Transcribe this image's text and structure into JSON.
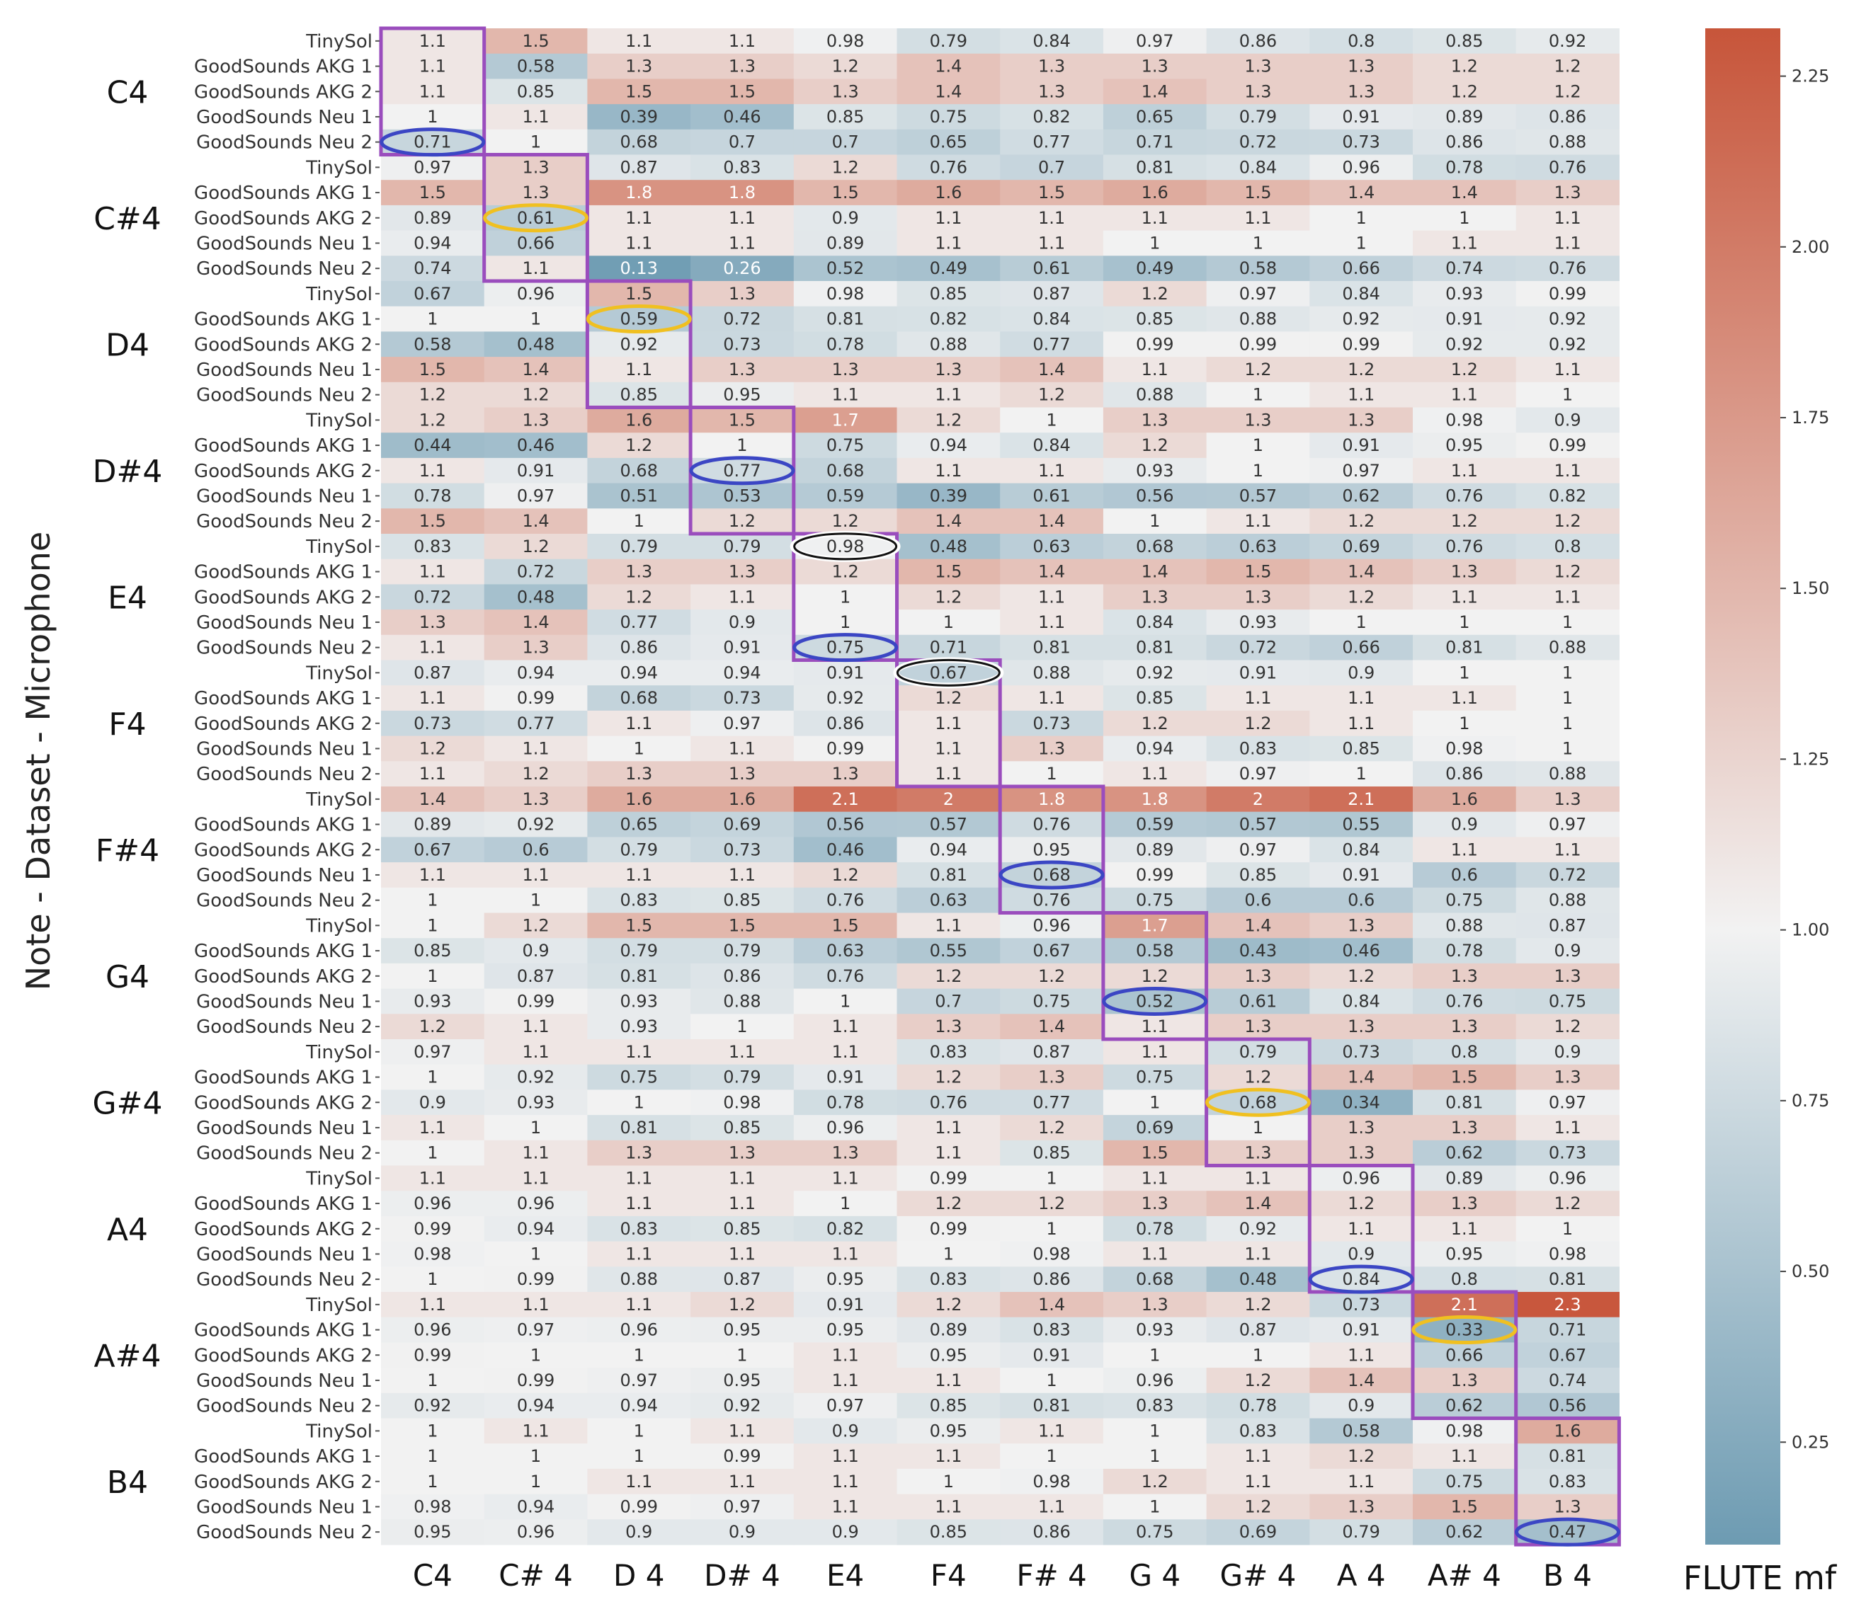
{
  "chart_data": {
    "type": "heatmap",
    "title": "FLUTE mf",
    "ylabel": "Note - Dataset - Microphone",
    "xlabel": "",
    "columns": [
      "C4",
      "C# 4",
      "D 4",
      "D# 4",
      "E4",
      "F4",
      "F# 4",
      "G 4",
      "G# 4",
      "A 4",
      "A# 4",
      "B 4"
    ],
    "notes": [
      "C4",
      "C#4",
      "D4",
      "D#4",
      "E4",
      "F4",
      "F#4",
      "G4",
      "G#4",
      "A4",
      "A#4",
      "B4"
    ],
    "microphones": [
      "TinySol",
      "GoodSounds  AKG 1",
      "GoodSounds  AKG 2",
      "GoodSounds   Neu 1",
      "GoodSounds   Neu 2"
    ],
    "values": [
      [
        "1.1",
        "1.5",
        "1.1",
        "1.1",
        "0.98",
        "0.79",
        "0.84",
        "0.97",
        "0.86",
        "0.8",
        "0.85",
        "0.92"
      ],
      [
        "1.1",
        "0.58",
        "1.3",
        "1.3",
        "1.2",
        "1.4",
        "1.3",
        "1.3",
        "1.3",
        "1.3",
        "1.2",
        "1.2"
      ],
      [
        "1.1",
        "0.85",
        "1.5",
        "1.5",
        "1.3",
        "1.4",
        "1.3",
        "1.4",
        "1.3",
        "1.3",
        "1.2",
        "1.2"
      ],
      [
        "1",
        "1.1",
        "0.39",
        "0.46",
        "0.85",
        "0.75",
        "0.82",
        "0.65",
        "0.79",
        "0.91",
        "0.89",
        "0.86"
      ],
      [
        "0.71",
        "1",
        "0.68",
        "0.7",
        "0.7",
        "0.65",
        "0.77",
        "0.71",
        "0.72",
        "0.73",
        "0.86",
        "0.88"
      ],
      [
        "0.97",
        "1.3",
        "0.87",
        "0.83",
        "1.2",
        "0.76",
        "0.7",
        "0.81",
        "0.84",
        "0.96",
        "0.78",
        "0.76"
      ],
      [
        "1.5",
        "1.3",
        "1.8",
        "1.8",
        "1.5",
        "1.6",
        "1.5",
        "1.6",
        "1.5",
        "1.4",
        "1.4",
        "1.3"
      ],
      [
        "0.89",
        "0.61",
        "1.1",
        "1.1",
        "0.9",
        "1.1",
        "1.1",
        "1.1",
        "1.1",
        "1",
        "1",
        "1.1"
      ],
      [
        "0.94",
        "0.66",
        "1.1",
        "1.1",
        "0.89",
        "1.1",
        "1.1",
        "1",
        "1",
        "1",
        "1.1",
        "1.1"
      ],
      [
        "0.74",
        "1.1",
        "0.13",
        "0.26",
        "0.52",
        "0.49",
        "0.61",
        "0.49",
        "0.58",
        "0.66",
        "0.74",
        "0.76"
      ],
      [
        "0.67",
        "0.96",
        "1.5",
        "1.3",
        "0.98",
        "0.85",
        "0.87",
        "1.2",
        "0.97",
        "0.84",
        "0.93",
        "0.99"
      ],
      [
        "1",
        "1",
        "0.59",
        "0.72",
        "0.81",
        "0.82",
        "0.84",
        "0.85",
        "0.88",
        "0.92",
        "0.91",
        "0.92"
      ],
      [
        "0.58",
        "0.48",
        "0.92",
        "0.73",
        "0.78",
        "0.88",
        "0.77",
        "0.99",
        "0.99",
        "0.99",
        "0.92",
        "0.92"
      ],
      [
        "1.5",
        "1.4",
        "1.1",
        "1.3",
        "1.3",
        "1.3",
        "1.4",
        "1.1",
        "1.2",
        "1.2",
        "1.2",
        "1.1"
      ],
      [
        "1.2",
        "1.2",
        "0.85",
        "0.95",
        "1.1",
        "1.1",
        "1.2",
        "0.88",
        "1",
        "1.1",
        "1.1",
        "1"
      ],
      [
        "1.2",
        "1.3",
        "1.6",
        "1.5",
        "1.7",
        "1.2",
        "1",
        "1.3",
        "1.3",
        "1.3",
        "0.98",
        "0.9"
      ],
      [
        "0.44",
        "0.46",
        "1.2",
        "1",
        "0.75",
        "0.94",
        "0.84",
        "1.2",
        "1",
        "0.91",
        "0.95",
        "0.99"
      ],
      [
        "1.1",
        "0.91",
        "0.68",
        "0.77",
        "0.68",
        "1.1",
        "1.1",
        "0.93",
        "1",
        "0.97",
        "1.1",
        "1.1"
      ],
      [
        "0.78",
        "0.97",
        "0.51",
        "0.53",
        "0.59",
        "0.39",
        "0.61",
        "0.56",
        "0.57",
        "0.62",
        "0.76",
        "0.82"
      ],
      [
        "1.5",
        "1.4",
        "1",
        "1.2",
        "1.2",
        "1.4",
        "1.4",
        "1",
        "1.1",
        "1.2",
        "1.2",
        "1.2"
      ],
      [
        "0.83",
        "1.2",
        "0.79",
        "0.79",
        "0.98",
        "0.48",
        "0.63",
        "0.68",
        "0.63",
        "0.69",
        "0.76",
        "0.8"
      ],
      [
        "1.1",
        "0.72",
        "1.3",
        "1.3",
        "1.2",
        "1.5",
        "1.4",
        "1.4",
        "1.5",
        "1.4",
        "1.3",
        "1.2"
      ],
      [
        "0.72",
        "0.48",
        "1.2",
        "1.1",
        "1",
        "1.2",
        "1.1",
        "1.3",
        "1.3",
        "1.2",
        "1.1",
        "1.1"
      ],
      [
        "1.3",
        "1.4",
        "0.77",
        "0.9",
        "1",
        "1",
        "1.1",
        "0.84",
        "0.93",
        "1",
        "1",
        "1"
      ],
      [
        "1.1",
        "1.3",
        "0.86",
        "0.91",
        "0.75",
        "0.71",
        "0.81",
        "0.81",
        "0.72",
        "0.66",
        "0.81",
        "0.88"
      ],
      [
        "0.87",
        "0.94",
        "0.94",
        "0.94",
        "0.91",
        "0.67",
        "0.88",
        "0.92",
        "0.91",
        "0.9",
        "1",
        "1"
      ],
      [
        "1.1",
        "0.99",
        "0.68",
        "0.73",
        "0.92",
        "1.2",
        "1.1",
        "0.85",
        "1.1",
        "1.1",
        "1.1",
        "1"
      ],
      [
        "0.73",
        "0.77",
        "1.1",
        "0.97",
        "0.86",
        "1.1",
        "0.73",
        "1.2",
        "1.2",
        "1.1",
        "1",
        "1"
      ],
      [
        "1.2",
        "1.1",
        "1",
        "1.1",
        "0.99",
        "1.1",
        "1.3",
        "0.94",
        "0.83",
        "0.85",
        "0.98",
        "1"
      ],
      [
        "1.1",
        "1.2",
        "1.3",
        "1.3",
        "1.3",
        "1.1",
        "1",
        "1.1",
        "0.97",
        "1",
        "0.86",
        "0.88"
      ],
      [
        "1.4",
        "1.3",
        "1.6",
        "1.6",
        "2.1",
        "2",
        "1.8",
        "1.8",
        "2",
        "2.1",
        "1.6",
        "1.3"
      ],
      [
        "0.89",
        "0.92",
        "0.65",
        "0.69",
        "0.56",
        "0.57",
        "0.76",
        "0.59",
        "0.57",
        "0.55",
        "0.9",
        "0.97"
      ],
      [
        "0.67",
        "0.6",
        "0.79",
        "0.73",
        "0.46",
        "0.94",
        "0.95",
        "0.89",
        "0.97",
        "0.84",
        "1.1",
        "1.1"
      ],
      [
        "1.1",
        "1.1",
        "1.1",
        "1.1",
        "1.2",
        "0.81",
        "0.68",
        "0.99",
        "0.85",
        "0.91",
        "0.6",
        "0.72"
      ],
      [
        "1",
        "1",
        "0.83",
        "0.85",
        "0.76",
        "0.63",
        "0.76",
        "0.75",
        "0.6",
        "0.6",
        "0.75",
        "0.88"
      ],
      [
        "1",
        "1.2",
        "1.5",
        "1.5",
        "1.5",
        "1.1",
        "0.96",
        "1.7",
        "1.4",
        "1.3",
        "0.88",
        "0.87"
      ],
      [
        "0.85",
        "0.9",
        "0.79",
        "0.79",
        "0.63",
        "0.55",
        "0.67",
        "0.58",
        "0.43",
        "0.46",
        "0.78",
        "0.9"
      ],
      [
        "1",
        "0.87",
        "0.81",
        "0.86",
        "0.76",
        "1.2",
        "1.2",
        "1.2",
        "1.3",
        "1.2",
        "1.3",
        "1.3"
      ],
      [
        "0.93",
        "0.99",
        "0.93",
        "0.88",
        "1",
        "0.7",
        "0.75",
        "0.52",
        "0.61",
        "0.84",
        "0.76",
        "0.75"
      ],
      [
        "1.2",
        "1.1",
        "0.93",
        "1",
        "1.1",
        "1.3",
        "1.4",
        "1.1",
        "1.3",
        "1.3",
        "1.3",
        "1.2"
      ],
      [
        "0.97",
        "1.1",
        "1.1",
        "1.1",
        "1.1",
        "0.83",
        "0.87",
        "1.1",
        "0.79",
        "0.73",
        "0.8",
        "0.9"
      ],
      [
        "1",
        "0.92",
        "0.75",
        "0.79",
        "0.91",
        "1.2",
        "1.3",
        "0.75",
        "1.2",
        "1.4",
        "1.5",
        "1.3"
      ],
      [
        "0.9",
        "0.93",
        "1",
        "0.98",
        "0.78",
        "0.76",
        "0.77",
        "1",
        "0.68",
        "0.34",
        "0.81",
        "0.97"
      ],
      [
        "1.1",
        "1",
        "0.81",
        "0.85",
        "0.96",
        "1.1",
        "1.2",
        "0.69",
        "1",
        "1.3",
        "1.3",
        "1.1"
      ],
      [
        "1",
        "1.1",
        "1.3",
        "1.3",
        "1.3",
        "1.1",
        "0.85",
        "1.5",
        "1.3",
        "1.3",
        "0.62",
        "0.73"
      ],
      [
        "1.1",
        "1.1",
        "1.1",
        "1.1",
        "1.1",
        "0.99",
        "1",
        "1.1",
        "1.1",
        "0.96",
        "0.89",
        "0.96"
      ],
      [
        "0.96",
        "0.96",
        "1.1",
        "1.1",
        "1",
        "1.2",
        "1.2",
        "1.3",
        "1.4",
        "1.2",
        "1.3",
        "1.2"
      ],
      [
        "0.99",
        "0.94",
        "0.83",
        "0.85",
        "0.82",
        "0.99",
        "1",
        "0.78",
        "0.92",
        "1.1",
        "1.1",
        "1"
      ],
      [
        "0.98",
        "1",
        "1.1",
        "1.1",
        "1.1",
        "1",
        "0.98",
        "1.1",
        "1.1",
        "0.9",
        "0.95",
        "0.98"
      ],
      [
        "1",
        "0.99",
        "0.88",
        "0.87",
        "0.95",
        "0.83",
        "0.86",
        "0.68",
        "0.48",
        "0.84",
        "0.8",
        "0.81"
      ],
      [
        "1.1",
        "1.1",
        "1.1",
        "1.2",
        "0.91",
        "1.2",
        "1.4",
        "1.3",
        "1.2",
        "0.73",
        "2.1",
        "2.3"
      ],
      [
        "0.96",
        "0.97",
        "0.96",
        "0.95",
        "0.95",
        "0.89",
        "0.83",
        "0.93",
        "0.87",
        "0.91",
        "0.33",
        "0.71"
      ],
      [
        "0.99",
        "1",
        "1",
        "1",
        "1.1",
        "0.95",
        "0.91",
        "1",
        "1",
        "1.1",
        "0.66",
        "0.67"
      ],
      [
        "1",
        "0.99",
        "0.97",
        "0.95",
        "1.1",
        "1.1",
        "1",
        "0.96",
        "1.2",
        "1.4",
        "1.3",
        "0.74"
      ],
      [
        "0.92",
        "0.94",
        "0.94",
        "0.92",
        "0.97",
        "0.85",
        "0.81",
        "0.83",
        "0.78",
        "0.9",
        "0.62",
        "0.56"
      ],
      [
        "1",
        "1.1",
        "1",
        "1.1",
        "0.9",
        "0.95",
        "1.1",
        "1",
        "0.83",
        "0.58",
        "0.98",
        "1.6"
      ],
      [
        "1",
        "1",
        "1",
        "0.99",
        "1.1",
        "1.1",
        "1",
        "1",
        "1.1",
        "1.2",
        "1.1",
        "0.81"
      ],
      [
        "1",
        "1",
        "1.1",
        "1.1",
        "1.1",
        "1",
        "0.98",
        "1.2",
        "1.1",
        "1.1",
        "0.75",
        "0.83"
      ],
      [
        "0.98",
        "0.94",
        "0.99",
        "0.97",
        "1.1",
        "1.1",
        "1.1",
        "1",
        "1.2",
        "1.3",
        "1.5",
        "1.3"
      ],
      [
        "0.95",
        "0.96",
        "0.9",
        "0.9",
        "0.9",
        "0.85",
        "0.86",
        "0.75",
        "0.69",
        "0.79",
        "0.62",
        "0.47"
      ]
    ],
    "colorbar": {
      "ticks": [
        "0.25",
        "0.50",
        "0.75",
        "1.00",
        "1.25",
        "1.50",
        "1.75",
        "2.00",
        "2.25"
      ],
      "min": 0.1,
      "max": 2.32,
      "center": 1.0,
      "low_color": "#6d9bb2",
      "mid_color": "#f2f2f2",
      "high_color": "#c7553a"
    },
    "highlight_boxes": [
      {
        "col": 0,
        "row_start": 0,
        "row_end": 4
      },
      {
        "col": 1,
        "row_start": 5,
        "row_end": 9
      },
      {
        "col": 2,
        "row_start": 10,
        "row_end": 14
      },
      {
        "col": 3,
        "row_start": 15,
        "row_end": 19
      },
      {
        "col": 4,
        "row_start": 20,
        "row_end": 24
      },
      {
        "col": 5,
        "row_start": 25,
        "row_end": 29
      },
      {
        "col": 6,
        "row_start": 30,
        "row_end": 34
      },
      {
        "col": 7,
        "row_start": 35,
        "row_end": 39
      },
      {
        "col": 8,
        "row_start": 40,
        "row_end": 44
      },
      {
        "col": 9,
        "row_start": 45,
        "row_end": 49
      },
      {
        "col": 10,
        "row_start": 50,
        "row_end": 54
      },
      {
        "col": 11,
        "row_start": 55,
        "row_end": 59
      }
    ],
    "circles": [
      {
        "row": 4,
        "col": 0,
        "color": "blue"
      },
      {
        "row": 7,
        "col": 1,
        "color": "yellow"
      },
      {
        "row": 11,
        "col": 2,
        "color": "yellow"
      },
      {
        "row": 17,
        "col": 3,
        "color": "blue"
      },
      {
        "row": 20,
        "col": 4,
        "color": "black"
      },
      {
        "row": 24,
        "col": 4,
        "color": "blue"
      },
      {
        "row": 25,
        "col": 5,
        "color": "black"
      },
      {
        "row": 33,
        "col": 6,
        "color": "blue"
      },
      {
        "row": 38,
        "col": 7,
        "color": "blue"
      },
      {
        "row": 42,
        "col": 8,
        "color": "yellow"
      },
      {
        "row": 49,
        "col": 9,
        "color": "blue"
      },
      {
        "row": 51,
        "col": 10,
        "color": "yellow"
      },
      {
        "row": 59,
        "col": 11,
        "color": "blue"
      }
    ],
    "style_colors": {
      "box": "#9a4dbd",
      "blue": "#3b46c4",
      "yellow": "#f0c020",
      "black": "#111111",
      "text_dark": "#333333",
      "text_light": "#ffffff"
    }
  }
}
